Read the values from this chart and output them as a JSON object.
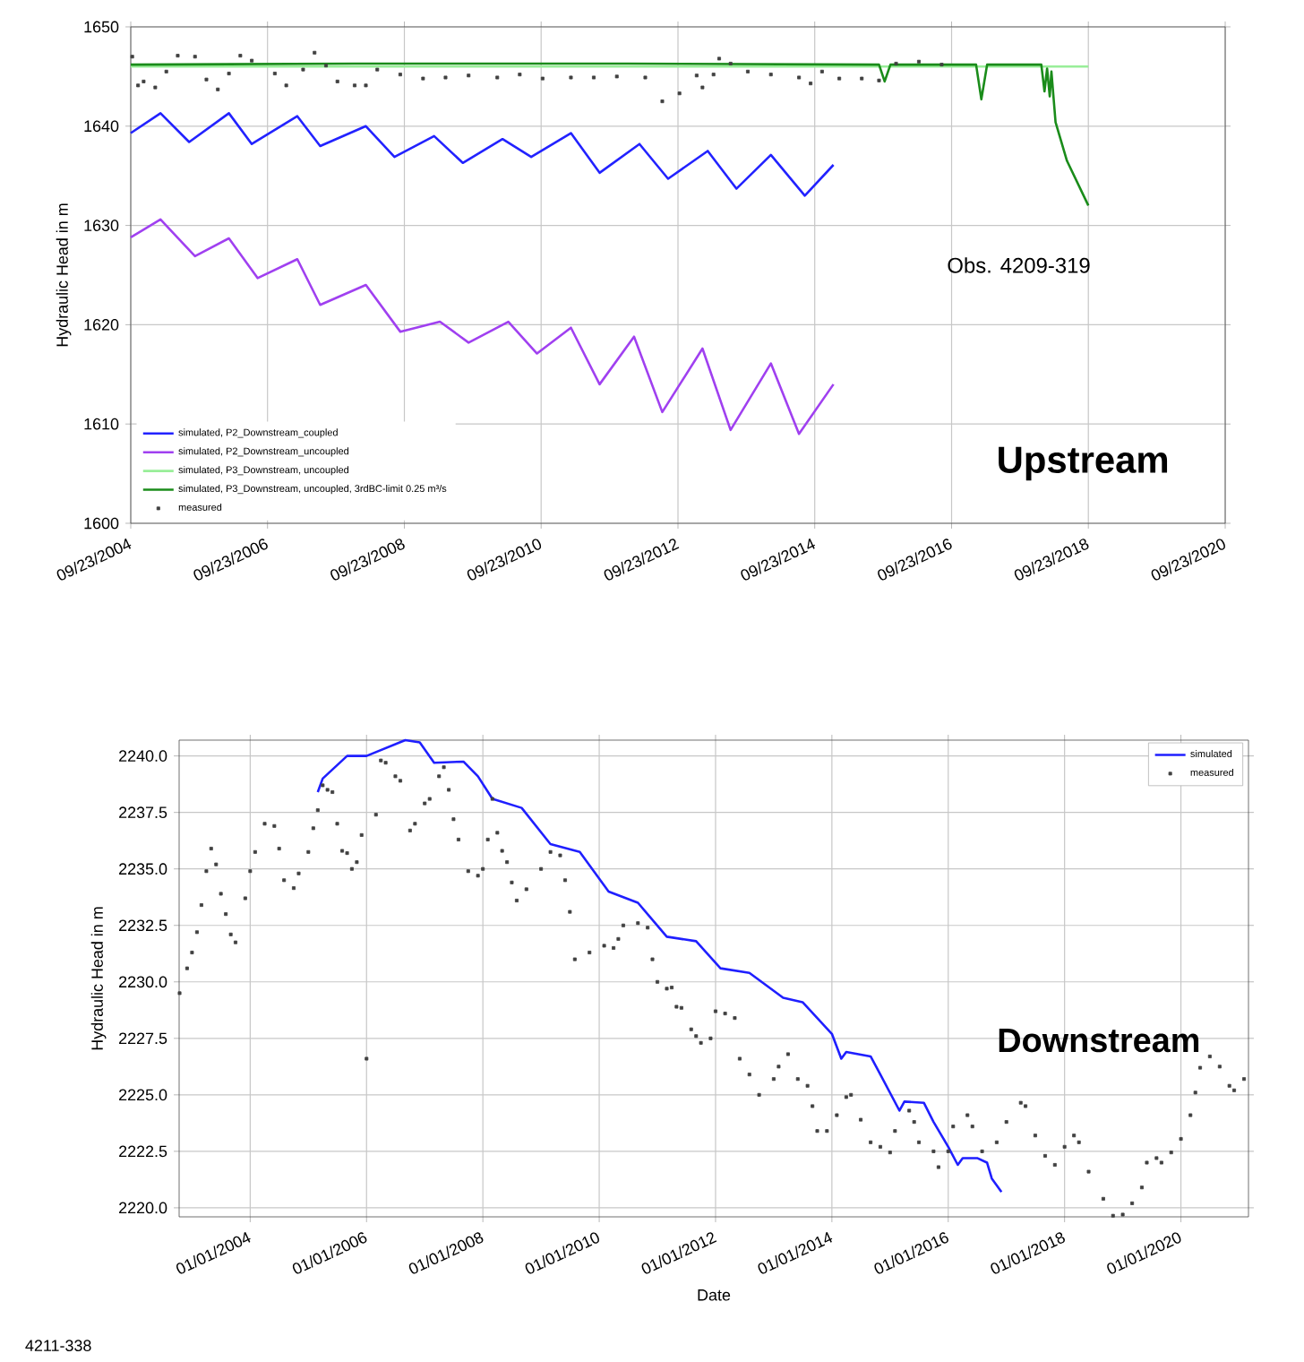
{
  "chart_data": [
    {
      "type": "line",
      "ylabel": "Hydraulic Head in m",
      "xlim": [
        "2004-09-23",
        "2020-09-23"
      ],
      "ylim": [
        1600,
        1650
      ],
      "xticks": [
        {
          "value": "2004-09-23",
          "label": "09/23/2004"
        },
        {
          "value": "2006-09-23",
          "label": "09/23/2006"
        },
        {
          "value": "2008-09-23",
          "label": "09/23/2008"
        },
        {
          "value": "2010-09-23",
          "label": "09/23/2010"
        },
        {
          "value": "2012-09-23",
          "label": "09/23/2012"
        },
        {
          "value": "2014-09-23",
          "label": "09/23/2014"
        },
        {
          "value": "2016-09-23",
          "label": "09/23/2016"
        },
        {
          "value": "2018-09-23",
          "label": "09/23/2018"
        },
        {
          "value": "2020-09-23",
          "label": "09/23/2020"
        }
      ],
      "yticks": [
        1600,
        1610,
        1620,
        1630,
        1640,
        1650
      ],
      "grid": true,
      "legend": "bottom left",
      "annotations": [
        "Obs. 4209-319",
        "**Upstream**"
      ],
      "series": [
        {
          "name": "simulated, P2_Downstream_coupled",
          "color": "#2222ff",
          "type": "line",
          "x": [
            "2004-09-23",
            "2005-03",
            "2005-08",
            "2006-03",
            "2006-07",
            "2007-03",
            "2007-07",
            "2008-03",
            "2008-08",
            "2009-03",
            "2009-08",
            "2010-03",
            "2010-08",
            "2011-03",
            "2011-08",
            "2012-03",
            "2012-08",
            "2013-03",
            "2013-08",
            "2014-02",
            "2014-08",
            "2015-01"
          ],
          "values": [
            1639.3,
            1641.3,
            1638.4,
            1641.3,
            1638.2,
            1641.0,
            1638.0,
            1640.0,
            1636.9,
            1639.0,
            1636.3,
            1638.7,
            1636.9,
            1639.3,
            1635.3,
            1638.2,
            1634.7,
            1637.5,
            1633.7,
            1637.1,
            1633.0,
            1636.1
          ]
        },
        {
          "name": "simulated, P2_Downstream_uncoupled",
          "color": "#a040f0",
          "type": "line",
          "x": [
            "2004-09-23",
            "2005-03",
            "2005-09",
            "2006-03",
            "2006-08",
            "2007-03",
            "2007-07",
            "2008-03",
            "2008-09",
            "2009-04",
            "2009-09",
            "2010-04",
            "2010-09",
            "2011-03",
            "2011-08",
            "2012-02",
            "2012-07",
            "2013-02",
            "2013-07",
            "2014-02",
            "2014-07",
            "2015-01"
          ],
          "values": [
            1628.8,
            1630.6,
            1626.9,
            1628.7,
            1624.7,
            1626.6,
            1622.0,
            1624.0,
            1619.3,
            1620.3,
            1618.2,
            1620.3,
            1617.1,
            1619.7,
            1614.0,
            1618.8,
            1611.2,
            1617.6,
            1609.4,
            1616.1,
            1609.0,
            1614.0
          ]
        },
        {
          "name": "simulated, P3_Downstream, uncoupled",
          "color": "#99ee99",
          "type": "line",
          "x": [
            "2004-09-23",
            "2018-09-23"
          ],
          "values": [
            1646.0,
            1646.0
          ]
        },
        {
          "name": "simulated, P3_Downstream, uncoupled, 3rdBC-limit 0.25 m³/s",
          "color": "#1a8c1a",
          "type": "line",
          "x": [
            "2004-09-23",
            "2008-01",
            "2012-01",
            "2015-09",
            "2015-10",
            "2015-11",
            "2017-02",
            "2017-03",
            "2017-04",
            "2018-01-15",
            "2018-02-01",
            "2018-02-15",
            "2018-03-01",
            "2018-03-10",
            "2018-04-01",
            "2018-06-01",
            "2018-09-23"
          ],
          "values": [
            1646.2,
            1646.3,
            1646.3,
            1646.2,
            1644.5,
            1646.2,
            1646.2,
            1642.7,
            1646.2,
            1646.2,
            1643.5,
            1645.8,
            1643.0,
            1645.5,
            1640.4,
            1636.5,
            1632.0
          ]
        },
        {
          "name": "measured",
          "color": "#404040",
          "type": "scatter",
          "marker": "square",
          "x": [
            "2004-10",
            "2004-11",
            "2004-12",
            "2005-02",
            "2005-04",
            "2005-06",
            "2005-09",
            "2005-11",
            "2006-01",
            "2006-03",
            "2006-05",
            "2006-07",
            "2006-11",
            "2007-01",
            "2007-04",
            "2007-06",
            "2007-08",
            "2007-10",
            "2008-01",
            "2008-03",
            "2008-05",
            "2008-09",
            "2009-01",
            "2009-05",
            "2009-09",
            "2010-02",
            "2010-06",
            "2010-10",
            "2011-03",
            "2011-07",
            "2011-11",
            "2012-04",
            "2012-07",
            "2012-10",
            "2013-01",
            "2013-02",
            "2013-04",
            "2013-05",
            "2013-07",
            "2013-10",
            "2014-02",
            "2014-07",
            "2014-09",
            "2014-11",
            "2015-02",
            "2015-06",
            "2015-09",
            "2015-12",
            "2016-04",
            "2016-08"
          ],
          "values": [
            1647.0,
            1644.1,
            1644.5,
            1643.9,
            1645.5,
            1647.1,
            1647.0,
            1644.7,
            1643.7,
            1645.3,
            1647.1,
            1646.6,
            1645.3,
            1644.1,
            1645.7,
            1647.4,
            1646.1,
            1644.5,
            1644.1,
            1644.1,
            1645.7,
            1645.2,
            1644.8,
            1644.9,
            1645.1,
            1644.9,
            1645.2,
            1644.8,
            1644.9,
            1644.9,
            1645.0,
            1644.9,
            1642.5,
            1643.3,
            1645.1,
            1643.9,
            1645.2,
            1646.8,
            1646.3,
            1645.5,
            1645.2,
            1644.9,
            1644.3,
            1645.5,
            1644.8,
            1644.8,
            1644.6,
            1646.3,
            1646.5,
            1646.2
          ]
        }
      ]
    },
    {
      "type": "line",
      "xlabel": "Date",
      "ylabel": "Hydraulic Head in m",
      "xlim": [
        "2002-10-12",
        "2021-03-01"
      ],
      "ylim": [
        2219.6,
        2240.7
      ],
      "xticks": [
        {
          "value": "2004-01-01",
          "label": "01/01/2004"
        },
        {
          "value": "2006-01-01",
          "label": "01/01/2006"
        },
        {
          "value": "2008-01-01",
          "label": "01/01/2008"
        },
        {
          "value": "2010-01-01",
          "label": "01/01/2010"
        },
        {
          "value": "2012-01-01",
          "label": "01/01/2012"
        },
        {
          "value": "2014-01-01",
          "label": "01/01/2014"
        },
        {
          "value": "2016-01-01",
          "label": "01/01/2016"
        },
        {
          "value": "2018-01-01",
          "label": "01/01/2018"
        },
        {
          "value": "2020-01-01",
          "label": "01/01/2020"
        }
      ],
      "yticks": [
        {
          "value": 2220,
          "label": "2220.0"
        },
        2222.5,
        {
          "value": 2225,
          "label": "2225.0"
        },
        2227.5,
        {
          "value": 2230,
          "label": "2230.0"
        },
        2232.5,
        {
          "value": 2235,
          "label": "2235.0"
        },
        2237.5,
        {
          "value": 2240,
          "label": "2240.0"
        }
      ],
      "grid": true,
      "legend": "top right",
      "annotations": [
        "**Downstream**",
        "4211-338"
      ],
      "series": [
        {
          "name": "simulated",
          "color": "#1f1fff",
          "type": "line",
          "x": [
            "2005-03",
            "2005-04",
            "2005-09",
            "2006-01",
            "2006-09",
            "2006-12",
            "2007-03",
            "2007-09",
            "2007-12",
            "2008-03",
            "2008-09",
            "2009-03",
            "2009-09",
            "2010-03",
            "2010-09",
            "2011-03",
            "2011-09",
            "2012-02",
            "2012-08",
            "2013-03",
            "2013-07",
            "2014-01",
            "2014-03",
            "2014-04",
            "2014-09",
            "2014-11",
            "2015-03",
            "2015-04",
            "2015-08",
            "2015-10",
            "2016-01",
            "2016-03",
            "2016-04",
            "2016-07",
            "2016-09",
            "2016-10",
            "2016-12"
          ],
          "values": [
            2238.4,
            2239.0,
            2240.0,
            2240.0,
            2240.7,
            2240.6,
            2239.7,
            2239.75,
            2239.1,
            2238.1,
            2237.7,
            2236.1,
            2235.75,
            2234.0,
            2233.5,
            2232.0,
            2231.8,
            2230.6,
            2230.4,
            2229.3,
            2229.1,
            2227.7,
            2226.6,
            2226.9,
            2226.7,
            2225.9,
            2224.3,
            2224.7,
            2224.65,
            2223.8,
            2222.7,
            2221.9,
            2222.2,
            2222.2,
            2222.0,
            2221.3,
            2220.7
          ]
        },
        {
          "name": "measured",
          "color": "#404040",
          "type": "scatter",
          "marker": "square",
          "x": [
            "2002-10-15",
            "2002-12",
            "2003-01",
            "2003-02",
            "2003-03",
            "2003-04",
            "2003-05",
            "2003-06",
            "2003-07",
            "2003-08",
            "2003-09",
            "2003-10",
            "2003-12",
            "2004-01",
            "2004-02",
            "2004-04",
            "2004-06",
            "2004-07",
            "2004-08",
            "2004-10",
            "2004-11",
            "2005-01",
            "2005-02",
            "2005-03",
            "2005-04",
            "2005-05",
            "2005-06",
            "2005-07",
            "2005-08",
            "2005-09",
            "2005-10",
            "2005-11",
            "2005-12",
            "2006-01-01",
            "2006-03",
            "2006-04",
            "2006-05",
            "2006-07",
            "2006-08",
            "2006-10",
            "2006-11",
            "2007-01",
            "2007-02",
            "2007-04",
            "2007-05",
            "2007-06",
            "2007-07",
            "2007-08",
            "2007-10",
            "2007-12",
            "2008-01",
            "2008-02",
            "2008-03",
            "2008-04",
            "2008-05",
            "2008-06",
            "2008-07",
            "2008-08",
            "2008-10",
            "2009-01",
            "2009-03",
            "2009-05",
            "2009-06",
            "2009-07",
            "2009-08",
            "2009-11",
            "2010-02",
            "2010-04",
            "2010-05",
            "2010-06",
            "2010-09",
            "2010-11",
            "2010-12",
            "2011-01",
            "2011-03",
            "2011-04",
            "2011-05",
            "2011-06",
            "2011-08",
            "2011-09",
            "2011-10",
            "2011-12",
            "2012-01",
            "2012-03",
            "2012-05",
            "2012-06",
            "2012-08",
            "2012-10",
            "2013-01",
            "2013-02",
            "2013-04",
            "2013-06",
            "2013-08",
            "2013-09",
            "2013-10",
            "2013-12",
            "2014-02",
            "2014-04",
            "2014-05",
            "2014-07",
            "2014-09",
            "2014-11",
            "2015-01",
            "2015-02",
            "2015-05",
            "2015-06",
            "2015-07",
            "2015-10",
            "2015-11",
            "2016-01",
            "2016-02",
            "2016-05",
            "2016-06",
            "2016-08",
            "2016-11",
            "2017-01",
            "2017-04",
            "2017-05",
            "2017-07",
            "2017-09",
            "2017-11",
            "2018-01",
            "2018-03",
            "2018-04",
            "2018-06",
            "2018-09",
            "2018-11",
            "2019-01",
            "2019-03",
            "2019-05",
            "2019-06",
            "2019-08",
            "2019-09",
            "2019-11",
            "2020-01",
            "2020-03",
            "2020-04",
            "2020-05",
            "2020-07",
            "2020-09",
            "2020-11",
            "2020-12",
            "2021-02"
          ],
          "values": [
            2229.5,
            2230.6,
            2231.3,
            2232.2,
            2233.4,
            2234.9,
            2235.9,
            2235.2,
            2233.9,
            2233.0,
            2232.1,
            2231.75,
            2233.7,
            2234.9,
            2235.75,
            2237.0,
            2236.9,
            2235.9,
            2234.5,
            2234.15,
            2234.8,
            2235.75,
            2236.8,
            2237.6,
            2238.7,
            2238.5,
            2238.4,
            2237.0,
            2235.8,
            2235.7,
            2235.0,
            2235.3,
            2236.5,
            2226.6,
            2237.4,
            2239.8,
            2239.7,
            2239.1,
            2238.9,
            2236.7,
            2237.0,
            2237.9,
            2238.1,
            2239.1,
            2239.5,
            2238.5,
            2237.2,
            2236.3,
            2234.9,
            2234.7,
            2235.0,
            2236.3,
            2238.1,
            2236.6,
            2235.8,
            2235.3,
            2234.4,
            2233.6,
            2234.1,
            2235.0,
            2235.75,
            2235.6,
            2234.5,
            2233.1,
            2231.0,
            2231.3,
            2231.6,
            2231.5,
            2231.9,
            2232.5,
            2232.6,
            2232.4,
            2231.0,
            2230.0,
            2229.7,
            2229.75,
            2228.9,
            2228.85,
            2227.9,
            2227.6,
            2227.3,
            2227.5,
            2228.7,
            2228.6,
            2228.4,
            2226.6,
            2225.9,
            2225.0,
            2225.7,
            2226.25,
            2226.8,
            2225.7,
            2225.4,
            2224.5,
            2223.4,
            2223.4,
            2224.1,
            2224.9,
            2225.0,
            2223.9,
            2222.9,
            2222.7,
            2222.45,
            2223.4,
            2224.3,
            2223.8,
            2222.9,
            2222.5,
            2221.8,
            2222.5,
            2223.6,
            2224.1,
            2223.6,
            2222.5,
            2222.9,
            2223.8,
            2224.65,
            2224.5,
            2223.2,
            2222.3,
            2221.9,
            2222.7,
            2223.2,
            2222.9,
            2221.6,
            2220.4,
            2219.65,
            2219.7,
            2220.2,
            2220.9,
            2222.0,
            2222.2,
            2222.0,
            2222.45,
            2223.05,
            2224.1,
            2225.1,
            2226.2,
            2226.7,
            2226.25,
            2225.4,
            2225.2,
            2225.7
          ]
        }
      ]
    }
  ]
}
